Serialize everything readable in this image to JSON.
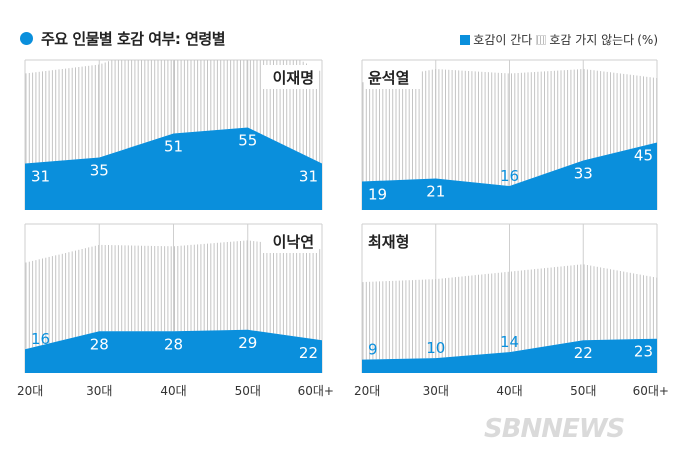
{
  "title": "주요 인물별 호감 여부: 연령별",
  "legend": {
    "like": "호감이 간다",
    "dislike": "호감 가지 않는다",
    "unit": "(%)"
  },
  "watermark": "SBNNEWS",
  "colors": {
    "like": "#0a8fdc",
    "dislike_line": "#c4c4c4",
    "frame": "#cfcfcf"
  },
  "chart_data": [
    {
      "type": "area",
      "title": "이재명",
      "categories": [
        "20대",
        "30대",
        "40대",
        "50대",
        "60대+"
      ],
      "series": [
        {
          "name": "호감이 간다",
          "values": [
            31,
            35,
            51,
            55,
            31
          ]
        },
        {
          "name": "호감 가지 않는다",
          "values": [
            60,
            62,
            63,
            64,
            61
          ]
        }
      ],
      "ylim": [
        0,
        100
      ]
    },
    {
      "type": "area",
      "title": "윤석열",
      "categories": [
        "20대",
        "30대",
        "40대",
        "50대",
        "60대+"
      ],
      "series": [
        {
          "name": "호감이 간다",
          "values": [
            19,
            21,
            16,
            33,
            45
          ]
        },
        {
          "name": "호감 가지 않는다",
          "values": [
            66,
            73,
            75,
            61,
            43
          ]
        }
      ],
      "ylim": [
        0,
        100
      ]
    },
    {
      "type": "area",
      "title": "이낙연",
      "categories": [
        "20대",
        "30대",
        "40대",
        "50대",
        "60대+"
      ],
      "series": [
        {
          "name": "호감이 간다",
          "values": [
            16,
            28,
            28,
            29,
            22
          ]
        },
        {
          "name": "호감 가지 않는다",
          "values": [
            58,
            58,
            57,
            60,
            61
          ]
        }
      ],
      "ylim": [
        0,
        100
      ]
    },
    {
      "type": "area",
      "title": "최재형",
      "categories": [
        "20대",
        "30대",
        "40대",
        "50대",
        "60대+"
      ],
      "series": [
        {
          "name": "호감이 간다",
          "values": [
            9,
            10,
            14,
            22,
            23
          ]
        },
        {
          "name": "호감 가지 않는다",
          "values": [
            52,
            53,
            54,
            51,
            41
          ]
        }
      ],
      "ylim": [
        0,
        100
      ]
    }
  ]
}
